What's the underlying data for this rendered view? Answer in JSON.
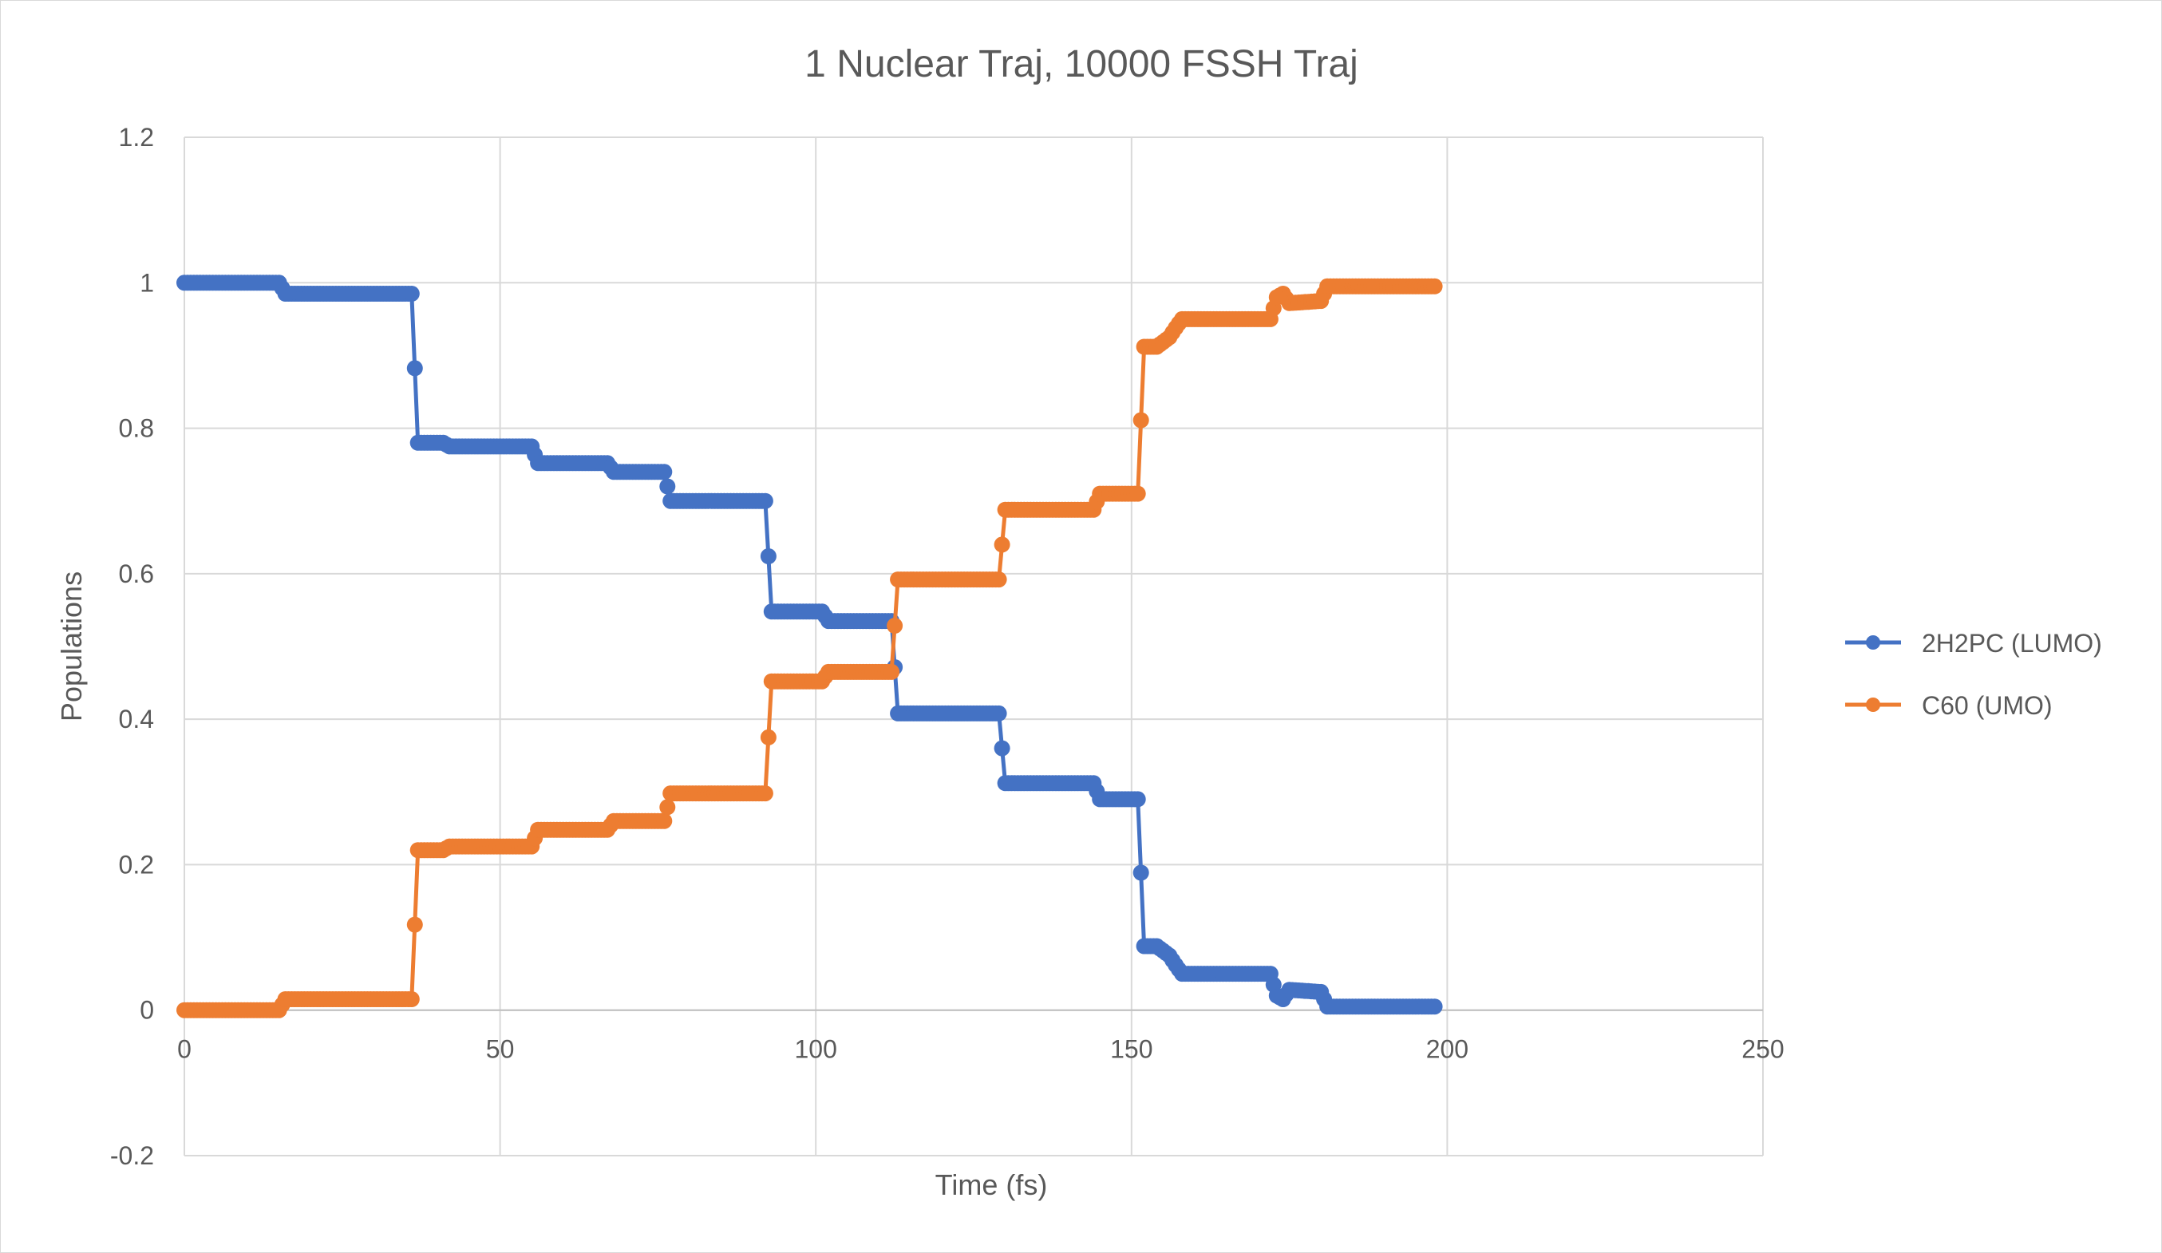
{
  "chart_data": {
    "type": "scatter",
    "title": "1 Nuclear Traj, 10000 FSSH Traj",
    "xlabel": "Time (fs)",
    "ylabel": "Populations",
    "xlim": [
      0,
      250
    ],
    "ylim": [
      -0.2,
      1.2
    ],
    "x_ticks": [
      0,
      50,
      100,
      150,
      200,
      250
    ],
    "y_ticks": [
      -0.2,
      0,
      0.2,
      0.4,
      0.6,
      0.8,
      1,
      1.2
    ],
    "grid": true,
    "legend_position": "right",
    "series": [
      {
        "name": "2H2PC (LUMO)",
        "color": "#4472C4",
        "points": [
          [
            0,
            1.0
          ],
          [
            15,
            1.0
          ],
          [
            16,
            0.985
          ],
          [
            36,
            0.985
          ],
          [
            37,
            0.78
          ],
          [
            41,
            0.78
          ],
          [
            42,
            0.775
          ],
          [
            55,
            0.775
          ],
          [
            56,
            0.752
          ],
          [
            67,
            0.752
          ],
          [
            68,
            0.74
          ],
          [
            76,
            0.74
          ],
          [
            77,
            0.7
          ],
          [
            92,
            0.7
          ],
          [
            93,
            0.548
          ],
          [
            101,
            0.548
          ],
          [
            102,
            0.535
          ],
          [
            112,
            0.535
          ],
          [
            113,
            0.408
          ],
          [
            129,
            0.408
          ],
          [
            130,
            0.312
          ],
          [
            144,
            0.312
          ],
          [
            145,
            0.29
          ],
          [
            151,
            0.29
          ],
          [
            152,
            0.088
          ],
          [
            154,
            0.088
          ],
          [
            156,
            0.075
          ],
          [
            157,
            0.062
          ],
          [
            158,
            0.05
          ],
          [
            172,
            0.05
          ],
          [
            173,
            0.02
          ],
          [
            174,
            0.015
          ],
          [
            175,
            0.028
          ],
          [
            180,
            0.025
          ],
          [
            181,
            0.005
          ],
          [
            198,
            0.005
          ]
        ]
      },
      {
        "name": "C60 (UMO)",
        "color": "#ED7D31",
        "points": [
          [
            0,
            0.0
          ],
          [
            15,
            0.0
          ],
          [
            16,
            0.015
          ],
          [
            36,
            0.015
          ],
          [
            37,
            0.22
          ],
          [
            41,
            0.22
          ],
          [
            42,
            0.225
          ],
          [
            55,
            0.225
          ],
          [
            56,
            0.248
          ],
          [
            67,
            0.248
          ],
          [
            68,
            0.26
          ],
          [
            76,
            0.26
          ],
          [
            77,
            0.298
          ],
          [
            92,
            0.298
          ],
          [
            93,
            0.452
          ],
          [
            101,
            0.452
          ],
          [
            102,
            0.465
          ],
          [
            112,
            0.465
          ],
          [
            113,
            0.592
          ],
          [
            129,
            0.592
          ],
          [
            130,
            0.688
          ],
          [
            144,
            0.688
          ],
          [
            145,
            0.71
          ],
          [
            151,
            0.71
          ],
          [
            152,
            0.912
          ],
          [
            154,
            0.912
          ],
          [
            156,
            0.925
          ],
          [
            157,
            0.938
          ],
          [
            158,
            0.95
          ],
          [
            172,
            0.95
          ],
          [
            173,
            0.98
          ],
          [
            174,
            0.985
          ],
          [
            175,
            0.972
          ],
          [
            180,
            0.975
          ],
          [
            181,
            0.995
          ],
          [
            198,
            0.995
          ]
        ]
      }
    ]
  },
  "page": {
    "title": "1 Nuclear Traj, 10000 FSSH Traj",
    "xlabel": "Time (fs)",
    "ylabel": "Populations",
    "legend": [
      "2H2PC (LUMO)",
      "C60 (UMO)"
    ]
  }
}
